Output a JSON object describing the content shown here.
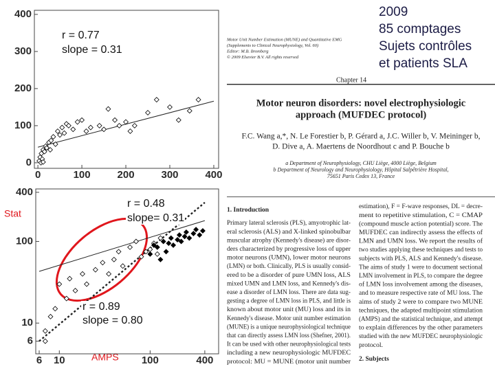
{
  "slide": {
    "heading_lines": [
      "2009",
      "85 comptages",
      "Sujets contrôles",
      "et patients SLA"
    ],
    "stat_label": "Stat",
    "amps_label": "AMPS"
  },
  "paper": {
    "header_lines": [
      "Motor Unit Number Estimation (MUNE) and Quantitative EMG",
      "(Supplements to Clinical Neurophysiology, Vol. 60)",
      "Editor: M.B. Bromberg",
      "© 2009 Elsevier B.V. All rights reserved"
    ],
    "chapter": "Chapter 14",
    "title_lines": [
      "Motor neuron disorders: novel electrophysiologic",
      "approach (MUFDEC protocol)"
    ],
    "author_lines": [
      "F.C. Wang a,*, N. Le Forestier b, P. Gérard a, J.C. Willer b, V. Meininger b,",
      "D. Dive a, A. Maertens de Noordhout c and P. Bouche b"
    ],
    "affiliation_lines": [
      "a Department of Neurophysiology, CHU Liège, 4000 Liège, Belgium",
      "b Department of Neurology and Neurophysiology, Hôpital Salpêtrière Hospital,",
      "75651 Paris Cedex 13, France"
    ],
    "section_heading": "1. Introduction",
    "left_column": [
      "Primary lateral sclerosis (PLS), amyotrophic lat-",
      "eral sclerosis (ALS) and X-linked spinobulbar",
      "muscular atrophy (Kennedy's disease) are disor-",
      "ders characterized by progressive loss of upper",
      "motor neurons (UMN), lower motor neurons",
      "(LMN) or both. Clinically, PLS is usually consid-",
      "ered to be a disorder of pure UMN loss, ALS",
      "mixed UMN and LMN loss, and Kennedy's dis-",
      "ease a disorder of LMN loss. There are data sug-",
      "gesting a degree of LMN loss in PLS, and little is",
      "known about motor unit (MU) loss and its in",
      "Kennedy's disease. Motor unit number estimation",
      "(MUNE) is a unique neurophysiological technique",
      "that can directly assess LMN loss (Shefner, 2001).",
      "It can be used with other neurophysiological tests",
      "including a new neurophysiologic MUFDEC",
      "protocol: MU = MUNE (motor unit number"
    ],
    "right_column": [
      "estimation), F = F-wave responses, DL = decre-",
      "ment to repetitive stimulation, C = CMAP",
      "(compound muscle action potential) score. The",
      "MUFDEC can indirectly assess the effects of",
      "LMN and UMN loss. We report the results of",
      "two studies applying these techniques and tests to",
      "subjects with PLS, ALS and Kennedy's disease.",
      "The aims of study 1 were to document sectional",
      "LMN involvement in PLS, to compare the degree",
      "of LMN loss involvement among the diseases,",
      "and to measure respective rate of MU loss. The",
      "aims of study 2 were to compare two MUNE",
      "techniques, the adapted multipoint stimulation",
      "(AMPS) and the statistical technique, and attempt",
      "to explain differences by the other parameters",
      "studied with the new MUFDEC neurophysiologic",
      "protocol."
    ],
    "next_section": "2. Subjects"
  },
  "chart_data": [
    {
      "type": "scatter",
      "log_scale": false,
      "xlim": [
        -8,
        411
      ],
      "ylim": [
        -15,
        411
      ],
      "xticks": [
        0,
        100,
        200,
        300,
        400
      ],
      "yticks": [
        0,
        100,
        200,
        300,
        400
      ],
      "annotations": [
        "r = 0.77",
        "slope = 0.31"
      ],
      "series": [
        {
          "marker": "open-diamond",
          "color": "#000000",
          "x": [
            3,
            5,
            8,
            10,
            12,
            15,
            18,
            20,
            25,
            28,
            30,
            35,
            40,
            45,
            50,
            55,
            60,
            65,
            70,
            80,
            90,
            100,
            110,
            120,
            140,
            150,
            160,
            175,
            185,
            200,
            210,
            220,
            250,
            270,
            300,
            320,
            345,
            365,
            7,
            12
          ],
          "y": [
            5,
            15,
            25,
            10,
            35,
            30,
            45,
            40,
            55,
            35,
            60,
            70,
            50,
            85,
            75,
            95,
            80,
            105,
            100,
            90,
            110,
            115,
            85,
            95,
            100,
            90,
            145,
            115,
            100,
            110,
            85,
            100,
            135,
            170,
            150,
            115,
            140,
            170,
            0,
            2
          ]
        }
      ],
      "trendlines": [
        {
          "style": "solid",
          "x": [
            0,
            400
          ],
          "y": [
            42,
            166
          ]
        }
      ]
    },
    {
      "type": "scatter",
      "log_scale": true,
      "xlim": [
        5.5,
        568
      ],
      "ylim": [
        4.2,
        440
      ],
      "xticks": [
        6,
        10,
        100,
        400
      ],
      "yticks": [
        6,
        10,
        100,
        400
      ],
      "annotations": [
        "r = 0.48",
        "slope= 0.31",
        "r = 0.89",
        "slope = 0.80"
      ],
      "series": [
        {
          "marker": "open-diamond",
          "color": "#000000",
          "x": [
            7,
            8,
            9,
            10,
            12,
            13,
            15,
            18,
            20,
            25,
            30,
            35,
            40,
            45,
            50,
            60,
            70,
            80,
            90,
            100,
            110,
            120,
            130,
            7
          ],
          "y": [
            8,
            12,
            15,
            30,
            20,
            35,
            25,
            40,
            30,
            45,
            55,
            40,
            60,
            75,
            50,
            85,
            100,
            65,
            75,
            80,
            95,
            70,
            110,
            6
          ]
        },
        {
          "marker": "filled-diamond",
          "color": "#000000",
          "x": [
            100,
            110,
            120,
            130,
            140,
            150,
            160,
            170,
            180,
            200,
            210,
            220,
            240,
            250,
            270,
            300,
            320,
            350,
            380
          ],
          "y": [
            70,
            90,
            85,
            60,
            100,
            75,
            95,
            110,
            90,
            105,
            120,
            100,
            115,
            130,
            110,
            125,
            140,
            120,
            135
          ]
        }
      ],
      "trendlines": [
        {
          "style": "solid",
          "x": [
            6,
            400
          ],
          "y": [
            43,
            180
          ]
        },
        {
          "style": "dotted",
          "x": [
            6,
            400
          ],
          "y": [
            6,
            300
          ]
        }
      ]
    }
  ]
}
